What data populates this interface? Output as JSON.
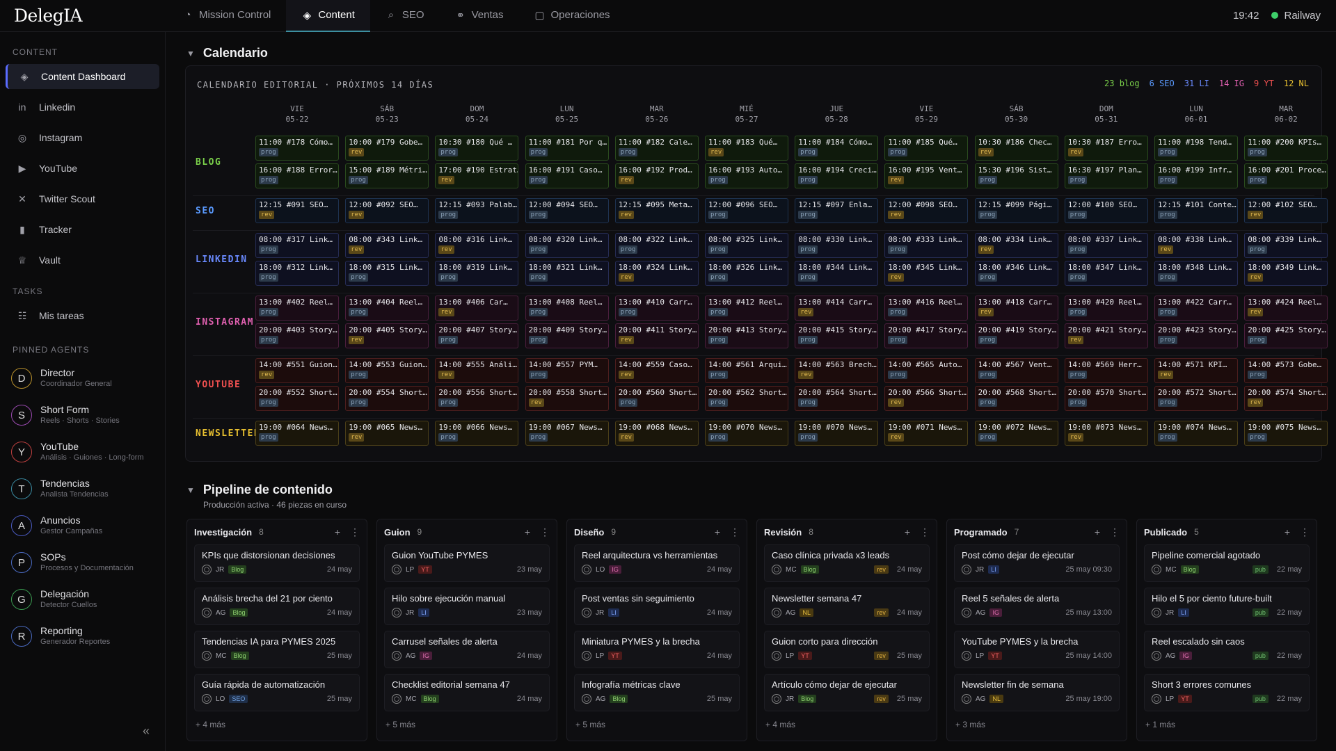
{
  "app": {
    "logo": "DelegIA",
    "time": "19:42",
    "status": "Railway"
  },
  "tabs": [
    {
      "label": "Mission Control",
      "icon": "gauge-icon"
    },
    {
      "label": "Content",
      "icon": "layers-icon"
    },
    {
      "label": "SEO",
      "icon": "search-icon"
    },
    {
      "label": "Ventas",
      "icon": "handshake-icon"
    },
    {
      "label": "Operaciones",
      "icon": "clipboard-icon"
    }
  ],
  "sidebar": {
    "content_title": "CONTENT",
    "items": [
      {
        "label": "Content Dashboard",
        "icon": "layers-icon"
      },
      {
        "label": "Linkedin",
        "icon": "linkedin-icon"
      },
      {
        "label": "Instagram",
        "icon": "instagram-icon"
      },
      {
        "label": "YouTube",
        "icon": "youtube-icon"
      },
      {
        "label": "Twitter Scout",
        "icon": "x-icon"
      },
      {
        "label": "Tracker",
        "icon": "bar-chart-icon"
      },
      {
        "label": "Vault",
        "icon": "trophy-icon"
      }
    ],
    "tasks_title": "TASKS",
    "tasks": [
      {
        "label": "Mis tareas",
        "icon": "tasks-icon"
      }
    ],
    "agents_title": "PINNED AGENTS",
    "agents": [
      {
        "initial": "D",
        "name": "Director",
        "sub": "Coordinador General",
        "color": "#b8902c"
      },
      {
        "initial": "S",
        "name": "Short Form",
        "sub": "Reels · Shorts · Stories",
        "color": "#9a4ab0"
      },
      {
        "initial": "Y",
        "name": "YouTube",
        "sub": "Análisis · Guiones · Long-form",
        "color": "#c04040"
      },
      {
        "initial": "T",
        "name": "Tendencias",
        "sub": "Analista Tendencias",
        "color": "#3a8aa0"
      },
      {
        "initial": "A",
        "name": "Anuncios",
        "sub": "Gestor Campañas",
        "color": "#4a5ac0"
      },
      {
        "initial": "P",
        "name": "SOPs",
        "sub": "Procesos y Documentación",
        "color": "#4a6ac0"
      },
      {
        "initial": "G",
        "name": "Delegación",
        "sub": "Detector Cuellos",
        "color": "#3a9a50"
      },
      {
        "initial": "R",
        "name": "Reporting",
        "sub": "Generador Reportes",
        "color": "#4a6ac0"
      }
    ]
  },
  "calendar": {
    "section_title": "Calendario",
    "header": "CALENDARIO EDITORIAL · PRÓXIMOS 14 DÍAS",
    "counts": [
      {
        "label": "23 blog",
        "color": "#7ad04a"
      },
      {
        "label": "6 SEO",
        "color": "#5a9aff"
      },
      {
        "label": "31 LI",
        "color": "#6a8aff"
      },
      {
        "label": "14 IG",
        "color": "#e060b0"
      },
      {
        "label": "9 YT",
        "color": "#f05050"
      },
      {
        "label": "12 NL",
        "color": "#e8c030"
      }
    ],
    "days": [
      {
        "d": "VIE",
        "date": "05-22"
      },
      {
        "d": "SÁB",
        "date": "05-23"
      },
      {
        "d": "DOM",
        "date": "05-24"
      },
      {
        "d": "LUN",
        "date": "05-25"
      },
      {
        "d": "MAR",
        "date": "05-26"
      },
      {
        "d": "MIÉ",
        "date": "05-27"
      },
      {
        "d": "JUE",
        "date": "05-28"
      },
      {
        "d": "VIE",
        "date": "05-29"
      },
      {
        "d": "SÁB",
        "date": "05-30"
      },
      {
        "d": "DOM",
        "date": "05-31"
      },
      {
        "d": "LUN",
        "date": "06-01"
      },
      {
        "d": "MAR",
        "date": "06-02"
      }
    ],
    "rows": [
      {
        "label": "BLOG",
        "color": "#7ad04a",
        "bg": "#0f1a0c",
        "border": "#2a4a1e",
        "lines": [
          [
            "11:00 #178 Cómo…|prog",
            "10:00 #179 Gobe…|rev",
            "10:30 #180 Qué …|prog",
            "11:00 #181 Por q…|prog",
            "11:00 #182 Cale…|prog",
            "11:00 #183 Qué…|rev",
            "11:00 #184 Cómo…|prog",
            "11:00 #185 Qué…|prog",
            "10:30 #186 Chec…|rev",
            "10:30 #187 Erro…|rev",
            "11:00 #198 Tend…|prog",
            "11:00 #200 KPIs…|prog"
          ],
          [
            "16:00 #188 Error…|prog",
            "15:00 #189 Métri…|prog",
            "17:00 #190 Estrat…|rev",
            "16:00 #191 Caso…|prog",
            "16:00 #192 Prod…|rev",
            "16:00 #193 Auto…|prog",
            "16:00 #194 Creci…|prog",
            "16:00 #195 Vent…|rev",
            "15:30 #196 Sist…|prog",
            "16:30 #197 Plan…|prog",
            "16:00 #199 Infr…|prog",
            "16:00 #201 Proce…|prog"
          ]
        ]
      },
      {
        "label": "SEO",
        "color": "#5a9aff",
        "bg": "#0c121c",
        "border": "#1e3250",
        "lines": [
          [
            "12:15 #091 SEO…|rev",
            "12:00 #092 SEO…|rev",
            "12:15 #093 Palab…|prog",
            "12:00 #094 SEO…|prog",
            "12:15 #095 Meta…|rev",
            "12:00 #096 SEO…|prog",
            "12:15 #097 Enla…|prog",
            "12:00 #098 SEO…|rev",
            "12:15 #099 Pági…|prog",
            "12:00 #100 SEO…|prog",
            "12:15 #101 Conte…|prog",
            "12:00 #102 SEO…|rev"
          ]
        ]
      },
      {
        "label": "LINKEDIN",
        "color": "#6a8aff",
        "bg": "#0e1020",
        "border": "#262c54",
        "lines": [
          [
            "08:00 #317 Link…|prog",
            "08:00 #343 Link…|rev",
            "08:00 #316 Link…|rev",
            "08:00 #320 Link…|prog",
            "08:00 #322 Link…|prog",
            "08:00 #325 Link…|prog",
            "08:00 #330 Link…|prog",
            "08:00 #333 Link…|prog",
            "08:00 #334 Link…|rev",
            "08:00 #337 Link…|prog",
            "08:00 #338 Link…|rev",
            "08:00 #339 Link…|prog"
          ],
          [
            "18:00 #312 Link…|prog",
            "18:00 #315 Link…|prog",
            "18:00 #319 Link…|prog",
            "18:00 #321 Link…|prog",
            "18:00 #324 Link…|rev",
            "18:00 #326 Link…|prog",
            "18:00 #344 Link…|prog",
            "18:00 #345 Link…|rev",
            "18:00 #346 Link…|prog",
            "18:00 #347 Link…|prog",
            "18:00 #348 Link…|prog",
            "18:00 #349 Link…|rev"
          ]
        ]
      },
      {
        "label": "INSTAGRAM",
        "color": "#e060b0",
        "bg": "#1a0c16",
        "border": "#4a1e3c",
        "lines": [
          [
            "13:00 #402 Reel…|prog",
            "13:00 #404 Reel…|prog",
            "13:00 #406 Car…|rev",
            "13:00 #408 Reel…|prog",
            "13:00 #410 Carr…|prog",
            "13:00 #412 Reel…|prog",
            "13:00 #414 Carr…|rev",
            "13:00 #416 Reel…|prog",
            "13:00 #418 Carr…|rev",
            "13:00 #420 Reel…|prog",
            "13:00 #422 Carr…|prog",
            "13:00 #424 Reel…|rev"
          ],
          [
            "20:00 #403 Story…|prog",
            "20:00 #405 Story…|rev",
            "20:00 #407 Story…|prog",
            "20:00 #409 Story…|prog",
            "20:00 #411 Story…|rev",
            "20:00 #413 Story…|prog",
            "20:00 #415 Story…|prog",
            "20:00 #417 Story…|prog",
            "20:00 #419 Story…|prog",
            "20:00 #421 Story…|rev",
            "20:00 #423 Story…|prog",
            "20:00 #425 Story…|prog"
          ]
        ]
      },
      {
        "label": "YOUTUBE",
        "color": "#f05050",
        "bg": "#1c0c0c",
        "border": "#4c1e1e",
        "lines": [
          [
            "14:00 #551 Guion…|rev",
            "14:00 #553 Guion…|prog",
            "14:00 #555 Análi…|rev",
            "14:00 #557 PYM…|prog",
            "14:00 #559 Caso…|rev",
            "14:00 #561 Arqui…|prog",
            "14:00 #563 Brech…|rev",
            "14:00 #565 Auto…|prog",
            "14:00 #567 Vent…|prog",
            "14:00 #569 Herr…|prog",
            "14:00 #571 KPI…|rev",
            "14:00 #573 Gobe…|prog"
          ],
          [
            "20:00 #552 Short…|prog",
            "20:00 #554 Short…|prog",
            "20:00 #556 Short…|prog",
            "20:00 #558 Short…|rev",
            "20:00 #560 Short…|prog",
            "20:00 #562 Short…|prog",
            "20:00 #564 Short…|prog",
            "20:00 #566 Short…|rev",
            "20:00 #568 Short…|prog",
            "20:00 #570 Short…|prog",
            "20:00 #572 Short…|prog",
            "20:00 #574 Short…|rev"
          ]
        ]
      },
      {
        "label": "NEWSLETTER",
        "color": "#e8c030",
        "bg": "#1a160a",
        "border": "#4a3e18",
        "lines": [
          [
            "19:00 #064 News…|prog",
            "19:00 #065 News…|rev",
            "19:00 #066 News…|prog",
            "19:00 #067 News…|prog",
            "19:00 #068 News…|rev",
            "19:00 #070 News…|prog",
            "19:00 #070 News…|prog",
            "19:00 #071 News…|rev",
            "19:00 #072 News…|prog",
            "19:00 #073 News…|rev",
            "19:00 #074 News…|prog",
            "19:00 #075 News…|prog"
          ]
        ]
      }
    ]
  },
  "pipeline": {
    "title": "Pipeline de contenido",
    "subtitle": "Producción activa · 46 piezas en curso",
    "columns": [
      {
        "name": "Investigación",
        "count": "8",
        "more": "+ 4 más",
        "cards": [
          {
            "title": "KPIs que distorsionan decisiones",
            "who": "JR",
            "tag": "Blog",
            "status": "",
            "date": "24 may"
          },
          {
            "title": "Análisis brecha del 21 por ciento",
            "who": "AG",
            "tag": "Blog",
            "status": "",
            "date": "24 may"
          },
          {
            "title": "Tendencias IA para PYMES 2025",
            "who": "MC",
            "tag": "Blog",
            "status": "",
            "date": "25 may"
          },
          {
            "title": "Guía rápida de automatización",
            "who": "LO",
            "tag": "SEO",
            "status": "",
            "date": "25 may"
          }
        ]
      },
      {
        "name": "Guion",
        "count": "9",
        "more": "+ 5 más",
        "cards": [
          {
            "title": "Guion YouTube PYMES",
            "who": "LP",
            "tag": "YT",
            "status": "",
            "date": "23 may"
          },
          {
            "title": "Hilo sobre ejecución manual",
            "who": "JR",
            "tag": "LI",
            "status": "",
            "date": "23 may"
          },
          {
            "title": "Carrusel señales de alerta",
            "who": "AG",
            "tag": "IG",
            "status": "",
            "date": "24 may"
          },
          {
            "title": "Checklist editorial semana 47",
            "who": "MC",
            "tag": "Blog",
            "status": "",
            "date": "24 may"
          }
        ]
      },
      {
        "name": "Diseño",
        "count": "9",
        "more": "+ 5 más",
        "cards": [
          {
            "title": "Reel arquitectura vs herramientas",
            "who": "LO",
            "tag": "IG",
            "status": "",
            "date": "24 may"
          },
          {
            "title": "Post ventas sin seguimiento",
            "who": "JR",
            "tag": "LI",
            "status": "",
            "date": "24 may"
          },
          {
            "title": "Miniatura PYMES y la brecha",
            "who": "LP",
            "tag": "YT",
            "status": "",
            "date": "24 may"
          },
          {
            "title": "Infografía métricas clave",
            "who": "AG",
            "tag": "Blog",
            "status": "",
            "date": "25 may"
          }
        ]
      },
      {
        "name": "Revisión",
        "count": "8",
        "more": "+ 4 más",
        "cards": [
          {
            "title": "Caso clínica privada x3 leads",
            "who": "MC",
            "tag": "Blog",
            "status": "rev",
            "date": "24 may"
          },
          {
            "title": "Newsletter semana 47",
            "who": "AG",
            "tag": "NL",
            "status": "rev",
            "date": "24 may"
          },
          {
            "title": "Guion corto para dirección",
            "who": "LP",
            "tag": "YT",
            "status": "rev",
            "date": "25 may"
          },
          {
            "title": "Artículo cómo dejar de ejecutar",
            "who": "JR",
            "tag": "Blog",
            "status": "rev",
            "date": "25 may"
          }
        ]
      },
      {
        "name": "Programado",
        "count": "7",
        "more": "+ 3 más",
        "cards": [
          {
            "title": "Post cómo dejar de ejecutar",
            "who": "JR",
            "tag": "LI",
            "status": "",
            "date": "25 may 09:30"
          },
          {
            "title": "Reel 5 señales de alerta",
            "who": "AG",
            "tag": "IG",
            "status": "",
            "date": "25 may 13:00"
          },
          {
            "title": "YouTube PYMES y la brecha",
            "who": "LP",
            "tag": "YT",
            "status": "",
            "date": "25 may 14:00"
          },
          {
            "title": "Newsletter fin de semana",
            "who": "AG",
            "tag": "NL",
            "status": "",
            "date": "25 may 19:00"
          }
        ]
      },
      {
        "name": "Publicado",
        "count": "5",
        "more": "+ 1 más",
        "cards": [
          {
            "title": "Pipeline comercial agotado",
            "who": "MC",
            "tag": "Blog",
            "status": "pub",
            "date": "22 may"
          },
          {
            "title": "Hilo el 5 por ciento future-built",
            "who": "JR",
            "tag": "LI",
            "status": "pub",
            "date": "22 may"
          },
          {
            "title": "Reel escalado sin caos",
            "who": "AG",
            "tag": "IG",
            "status": "pub",
            "date": "22 may"
          },
          {
            "title": "Short 3 errores comunes",
            "who": "LP",
            "tag": "YT",
            "status": "pub",
            "date": "22 may"
          }
        ]
      }
    ]
  }
}
